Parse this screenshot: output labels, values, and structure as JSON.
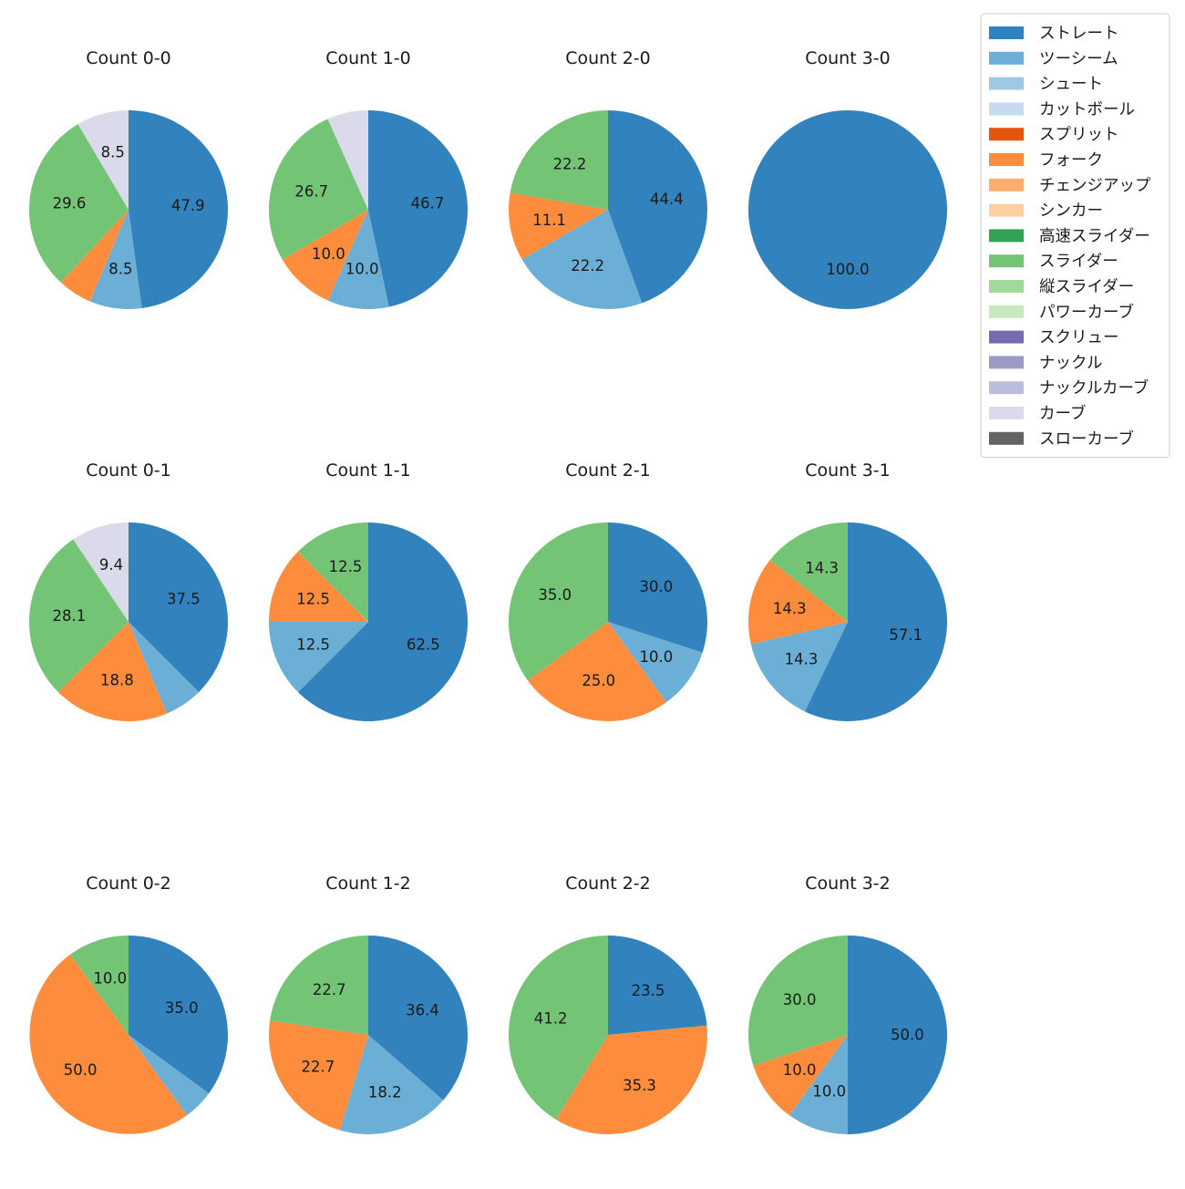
{
  "pitch_types": [
    {
      "name": "ストレート",
      "color": "#3182bd"
    },
    {
      "name": "ツーシーム",
      "color": "#6baed6"
    },
    {
      "name": "シュート",
      "color": "#9ecae1"
    },
    {
      "name": "カットボール",
      "color": "#c6dbef"
    },
    {
      "name": "スプリット",
      "color": "#e6550d"
    },
    {
      "name": "フォーク",
      "color": "#fd8d3c"
    },
    {
      "name": "チェンジアップ",
      "color": "#fdae6b"
    },
    {
      "name": "シンカー",
      "color": "#fdd0a2"
    },
    {
      "name": "高速スライダー",
      "color": "#31a354"
    },
    {
      "name": "スライダー",
      "color": "#74c476"
    },
    {
      "name": "縦スライダー",
      "color": "#a1d99b"
    },
    {
      "name": "パワーカーブ",
      "color": "#c7e9c0"
    },
    {
      "name": "スクリュー",
      "color": "#756bb1"
    },
    {
      "name": "ナックル",
      "color": "#9e9ac8"
    },
    {
      "name": "ナックルカーブ",
      "color": "#bcbddc"
    },
    {
      "name": "カーブ",
      "color": "#dadaeb"
    },
    {
      "name": "スローカーブ",
      "color": "#636363"
    }
  ],
  "chart_data": [
    {
      "type": "pie",
      "title": "Count 0-0",
      "slices": [
        {
          "label": "ストレート",
          "value": 47.9,
          "shown": "47.9"
        },
        {
          "label": "ツーシーム",
          "value": 8.5,
          "shown": "8.5"
        },
        {
          "label": "フォーク",
          "value": 5.6,
          "shown": ""
        },
        {
          "label": "スライダー",
          "value": 29.6,
          "shown": "29.6"
        },
        {
          "label": "カーブ",
          "value": 8.5,
          "shown": "8.5"
        }
      ]
    },
    {
      "type": "pie",
      "title": "Count 1-0",
      "slices": [
        {
          "label": "ストレート",
          "value": 46.7,
          "shown": "46.7"
        },
        {
          "label": "ツーシーム",
          "value": 10.0,
          "shown": "10.0"
        },
        {
          "label": "フォーク",
          "value": 10.0,
          "shown": "10.0"
        },
        {
          "label": "スライダー",
          "value": 26.7,
          "shown": "26.7"
        },
        {
          "label": "カーブ",
          "value": 6.7,
          "shown": ""
        }
      ]
    },
    {
      "type": "pie",
      "title": "Count 2-0",
      "slices": [
        {
          "label": "ストレート",
          "value": 44.4,
          "shown": "44.4"
        },
        {
          "label": "ツーシーム",
          "value": 22.2,
          "shown": "22.2"
        },
        {
          "label": "フォーク",
          "value": 11.1,
          "shown": "11.1"
        },
        {
          "label": "スライダー",
          "value": 22.2,
          "shown": "22.2"
        }
      ]
    },
    {
      "type": "pie",
      "title": "Count 3-0",
      "slices": [
        {
          "label": "ストレート",
          "value": 100.0,
          "shown": "100.0"
        }
      ]
    },
    {
      "type": "pie",
      "title": "Count 0-1",
      "slices": [
        {
          "label": "ストレート",
          "value": 37.5,
          "shown": "37.5"
        },
        {
          "label": "ツーシーム",
          "value": 6.2,
          "shown": ""
        },
        {
          "label": "フォーク",
          "value": 18.8,
          "shown": "18.8"
        },
        {
          "label": "スライダー",
          "value": 28.1,
          "shown": "28.1"
        },
        {
          "label": "カーブ",
          "value": 9.4,
          "shown": "9.4"
        }
      ]
    },
    {
      "type": "pie",
      "title": "Count 1-1",
      "slices": [
        {
          "label": "ストレート",
          "value": 62.5,
          "shown": "62.5"
        },
        {
          "label": "ツーシーム",
          "value": 12.5,
          "shown": "12.5"
        },
        {
          "label": "フォーク",
          "value": 12.5,
          "shown": "12.5"
        },
        {
          "label": "スライダー",
          "value": 12.5,
          "shown": "12.5"
        }
      ]
    },
    {
      "type": "pie",
      "title": "Count 2-1",
      "slices": [
        {
          "label": "ストレート",
          "value": 30.0,
          "shown": "30.0"
        },
        {
          "label": "ツーシーム",
          "value": 10.0,
          "shown": "10.0"
        },
        {
          "label": "フォーク",
          "value": 25.0,
          "shown": "25.0"
        },
        {
          "label": "スライダー",
          "value": 35.0,
          "shown": "35.0"
        }
      ]
    },
    {
      "type": "pie",
      "title": "Count 3-1",
      "slices": [
        {
          "label": "ストレート",
          "value": 57.1,
          "shown": "57.1"
        },
        {
          "label": "ツーシーム",
          "value": 14.3,
          "shown": "14.3"
        },
        {
          "label": "フォーク",
          "value": 14.3,
          "shown": "14.3"
        },
        {
          "label": "スライダー",
          "value": 14.3,
          "shown": "14.3"
        }
      ]
    },
    {
      "type": "pie",
      "title": "Count 0-2",
      "slices": [
        {
          "label": "ストレート",
          "value": 35.0,
          "shown": "35.0"
        },
        {
          "label": "ツーシーム",
          "value": 5.0,
          "shown": ""
        },
        {
          "label": "フォーク",
          "value": 50.0,
          "shown": "50.0"
        },
        {
          "label": "スライダー",
          "value": 10.0,
          "shown": "10.0"
        }
      ]
    },
    {
      "type": "pie",
      "title": "Count 1-2",
      "slices": [
        {
          "label": "ストレート",
          "value": 36.4,
          "shown": "36.4"
        },
        {
          "label": "ツーシーム",
          "value": 18.2,
          "shown": "18.2"
        },
        {
          "label": "フォーク",
          "value": 22.7,
          "shown": "22.7"
        },
        {
          "label": "スライダー",
          "value": 22.7,
          "shown": "22.7"
        }
      ]
    },
    {
      "type": "pie",
      "title": "Count 2-2",
      "slices": [
        {
          "label": "ストレート",
          "value": 23.5,
          "shown": "23.5"
        },
        {
          "label": "フォーク",
          "value": 35.3,
          "shown": "35.3"
        },
        {
          "label": "スライダー",
          "value": 41.2,
          "shown": "41.2"
        }
      ]
    },
    {
      "type": "pie",
      "title": "Count 3-2",
      "slices": [
        {
          "label": "ストレート",
          "value": 50.0,
          "shown": "50.0"
        },
        {
          "label": "ツーシーム",
          "value": 10.0,
          "shown": "10.0"
        },
        {
          "label": "フォーク",
          "value": 10.0,
          "shown": "10.0"
        },
        {
          "label": "スライダー",
          "value": 30.0,
          "shown": "30.0"
        }
      ]
    }
  ]
}
